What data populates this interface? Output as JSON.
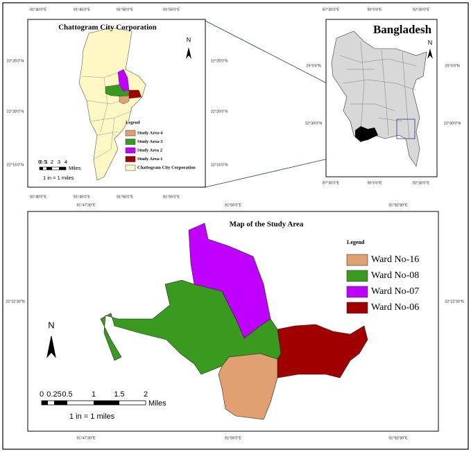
{
  "inset_city": {
    "title": "Chattogram City Corporation",
    "x_labels_top": [
      "91°40'0\"E",
      "91°45'0\"E",
      "91°50'0\"E",
      "91°55'0\"E"
    ],
    "x_labels_bottom": [
      "91°40'0\"E",
      "91°45'0\"E",
      "91°50'0\"E",
      "91°55'0\"E"
    ],
    "y_labels_left": [
      "22°25'0\"N",
      "22°20'0\"N",
      "22°15'0\"N"
    ],
    "y_labels_right": [
      "22°25'0\"N",
      "22°20'0\"N",
      "22°15'0\"N"
    ],
    "north": "N",
    "legend": {
      "title": "Legend",
      "items": [
        {
          "label": "Study Area-4",
          "color": "#e0a070"
        },
        {
          "label": "Study Area-3",
          "color": "#3a9a20"
        },
        {
          "label": "Study Area 2",
          "color": "#c000ff"
        },
        {
          "label": "Study Area-1",
          "color": "#a00000"
        },
        {
          "label": "Chattogram City Corporation",
          "color": "#fff8c4"
        }
      ]
    },
    "scale": {
      "ticks": [
        "0",
        "0.5",
        "1",
        "2",
        "3",
        "4"
      ],
      "unit": "Miles",
      "ratio": "1 in = 1 miles"
    }
  },
  "inset_country": {
    "title": "Bangladesh",
    "x_labels_top": [
      "87°30'0\"E",
      "90°0'0\"E",
      "92°30'0\"E"
    ],
    "x_labels_bottom": [
      "87°30'0\"E",
      "90°0'0\"E",
      "92°30'0\"E"
    ],
    "y_labels_left": [
      "25°0'0\"N",
      "22°30'0\"N"
    ],
    "y_labels_right": [
      "25°0'0\"N",
      "22°30'0\"N"
    ],
    "north": "N"
  },
  "main_map": {
    "title": "Map of the Study Area",
    "x_labels_top": [
      "91°47'30\"E",
      "91°50'0\"E",
      "91°52'30\"E"
    ],
    "x_labels_bottom": [
      "91°47'30\"E",
      "91°50'0\"E",
      "91°52'30\"E"
    ],
    "y_labels_left": [
      "22°22'30\"N"
    ],
    "y_labels_right": [
      "22°22'30\"N"
    ],
    "north": "N",
    "legend": {
      "title": "Legend",
      "items": [
        {
          "label": "Ward No-16",
          "color": "#e0a070"
        },
        {
          "label": "Ward No-08",
          "color": "#3a9a20"
        },
        {
          "label": "Ward No-07",
          "color": "#c000ff"
        },
        {
          "label": "Ward No-06",
          "color": "#a00000"
        }
      ]
    },
    "scale": {
      "ticks": [
        "0",
        "0.25",
        "0.5",
        "1",
        "1.5",
        "2"
      ],
      "unit": "Miles",
      "ratio": "1 in = 1 miles"
    }
  }
}
